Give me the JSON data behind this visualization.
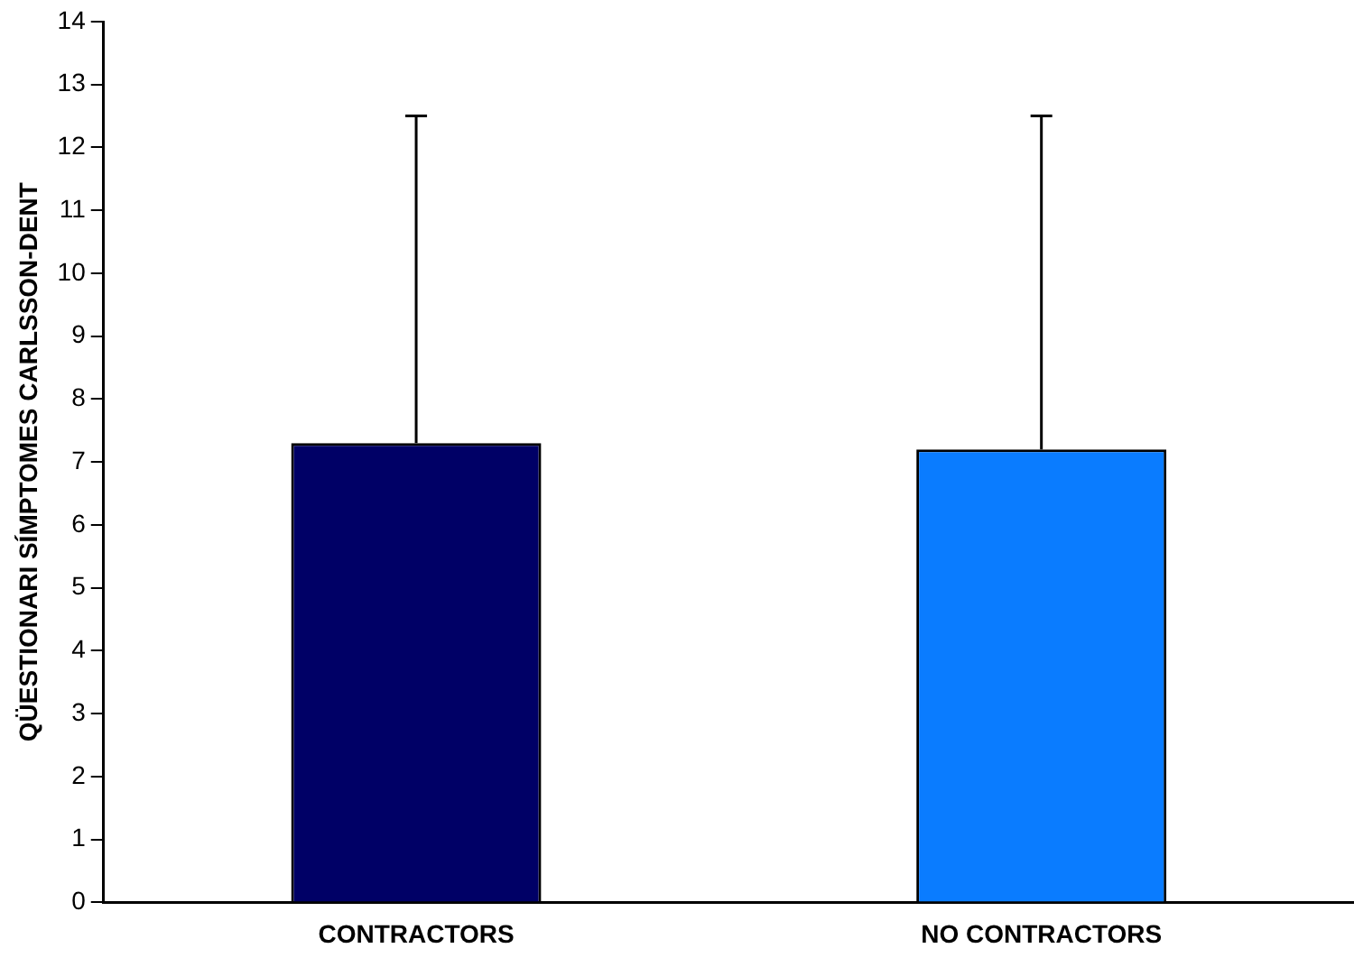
{
  "chart_data": {
    "type": "bar",
    "ylabel": "QÜESTIONARI SÍMPTOMES CARLSSON-DENT",
    "categories": [
      "CONTRACTORS",
      "NO CONTRACTORS"
    ],
    "values": [
      7.3,
      7.2
    ],
    "colors": [
      "#000066",
      "#0a7cff"
    ],
    "errors": [
      [
        7.3,
        12.5
      ],
      [
        7.2,
        12.5
      ]
    ],
    "ylim": [
      0,
      14
    ],
    "yticks": [
      0,
      1,
      2,
      3,
      4,
      5,
      6,
      7,
      8,
      9,
      10,
      11,
      12,
      13,
      14
    ],
    "grid": false,
    "legend": false
  }
}
